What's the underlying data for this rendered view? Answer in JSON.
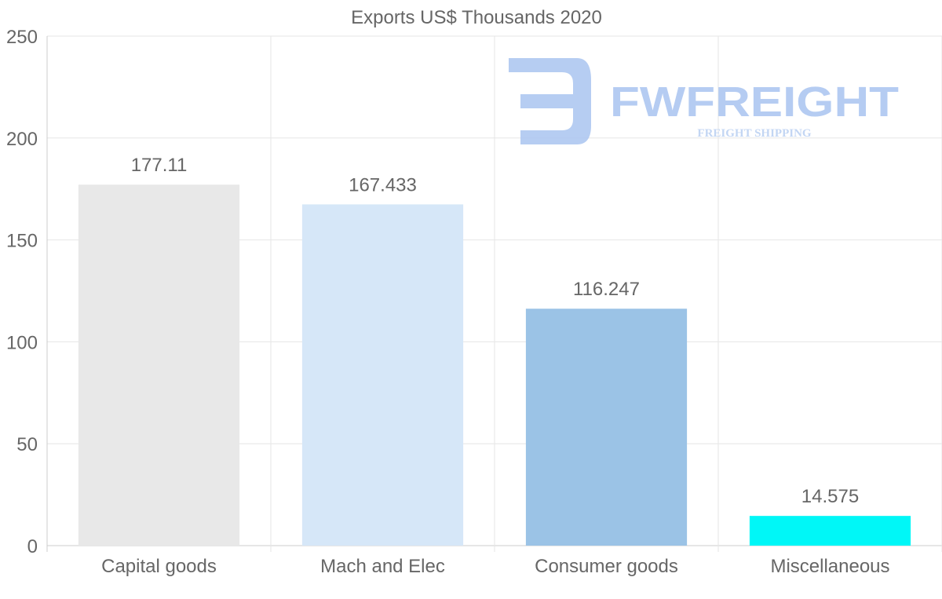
{
  "chart_data": {
    "type": "bar",
    "title": "Exports US$ Thousands 2020",
    "categories": [
      "Capital goods",
      "Mach and Elec",
      "Consumer goods",
      "Miscellaneous"
    ],
    "values": [
      177.11,
      167.433,
      116.247,
      14.575
    ],
    "value_labels": [
      "177.11",
      "167.433",
      "116.247",
      "14.575"
    ],
    "bar_colors": [
      "#e8e8e8",
      "#d6e7f8",
      "#9bc3e6",
      "#00f7f7"
    ],
    "ylim": [
      0,
      250
    ],
    "yticks": [
      0,
      50,
      100,
      150,
      200,
      250
    ],
    "xlabel": "",
    "ylabel": "",
    "grid": true,
    "legend": "none"
  },
  "watermark": {
    "brand": "FWFREIGHT",
    "tagline": "FREIGHT SHIPPING",
    "color": "#a9c4f0"
  }
}
